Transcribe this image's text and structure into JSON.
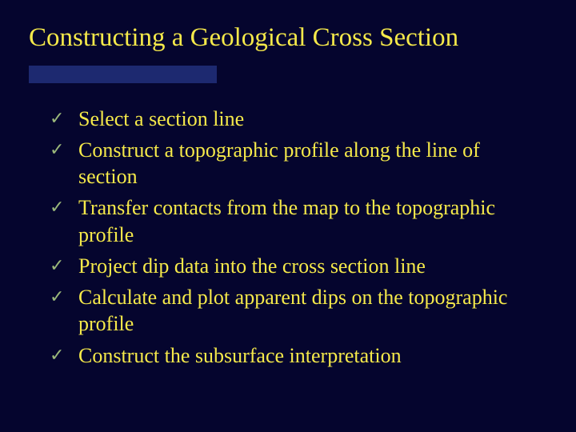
{
  "slide": {
    "title": "Constructing a Geological Cross Section",
    "bullets": [
      "Select a section line",
      "Construct a topographic profile along the line of section",
      "Transfer contacts from the map to the topographic profile",
      "Project dip data into the cross section line",
      "Calculate and plot apparent dips on the topographic profile",
      "Construct the subsurface interpretation"
    ]
  },
  "styling": {
    "background_color": "#05052e",
    "title_color": "#f5e94a",
    "title_fontsize": 33,
    "accent_bar_color": "#1d2970",
    "accent_bar_width": 235,
    "bullet_text_color": "#f5e94a",
    "bullet_fontsize": 26,
    "check_color": "#9bb87a",
    "check_glyph": "✓",
    "check_fontsize": 22
  }
}
